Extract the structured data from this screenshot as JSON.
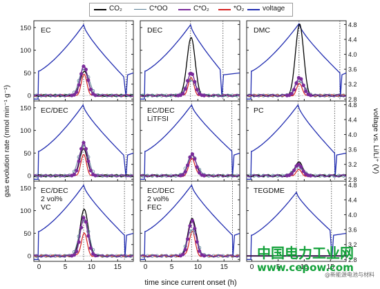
{
  "legend": [
    {
      "label": "CO₂",
      "color": "#000000",
      "marker": "none"
    },
    {
      "label": "C*OO",
      "color": "#5a7f95",
      "marker": "open-circle"
    },
    {
      "label": "C*O₂",
      "color": "#7a2a9a",
      "marker": "filled-circle"
    },
    {
      "label": "*O₂",
      "color": "#d62020",
      "marker": "none"
    },
    {
      "label": "voltage",
      "color": "#1f2bb0",
      "marker": "none"
    }
  ],
  "ylabel_left": "gas evolution rate (nmol min⁻¹ g⁻¹)",
  "ylabel_right": "voltage vs. Li/Li⁺ (V)",
  "xlabel": "time since current onset (h)",
  "watermark": {
    "line1": "中国电力工业网",
    "line2": "www.cepow.com",
    "line3": "@新能源电池与材料"
  },
  "chart_data": {
    "type": "line",
    "layout": "3x3 grid of panels sharing axes",
    "xlim": [
      -1,
      18
    ],
    "xticks": [
      0,
      5,
      10,
      15
    ],
    "ylim_left": [
      -12,
      165
    ],
    "yticks_left": [
      0,
      50,
      100,
      150
    ],
    "ylim_right": [
      2.75,
      4.9
    ],
    "yticks_right": [
      2.8,
      3.2,
      3.6,
      4.0,
      4.4,
      4.8
    ],
    "grid": false,
    "panels": [
      {
        "label": [
          "EC"
        ],
        "co2_peak": 55,
        "coo_peak": 60,
        "co2o_peak": 65,
        "o2_peak": 45,
        "v_peak": 4.79,
        "v_peak_t": 8.5,
        "v_start": 3.55,
        "v_end": 3.35,
        "t_end": 16.5,
        "vline_t": [
          8.5,
          16.6
        ]
      },
      {
        "label": [
          "DEC"
        ],
        "co2_peak": 130,
        "coo_peak": 35,
        "co2o_peak": 50,
        "o2_peak": 38,
        "v_peak": 4.79,
        "v_peak_t": 8.6,
        "v_start": 3.55,
        "v_end": 3.55,
        "t_end": 14.5,
        "vline_t": [
          8.6,
          14.8
        ]
      },
      {
        "label": [
          "DMC"
        ],
        "co2_peak": 160,
        "coo_peak": 33,
        "co2o_peak": 40,
        "o2_peak": 25,
        "v_peak": 4.82,
        "v_peak_t": 9.0,
        "v_start": 3.55,
        "v_end": 3.5,
        "t_end": 16.8,
        "vline_t": [
          9.0,
          16.8
        ]
      },
      {
        "label": [
          "EC/DEC"
        ],
        "co2_peak": 58,
        "coo_peak": 68,
        "co2o_peak": 73,
        "o2_peak": 45,
        "v_peak": 4.79,
        "v_peak_t": 8.4,
        "v_start": 3.55,
        "v_end": 3.4,
        "t_end": 16.5,
        "vline_t": [
          8.4,
          16.6
        ]
      },
      {
        "label": [
          "EC/DEC",
          "LiTFSI"
        ],
        "co2_peak": 47,
        "coo_peak": 45,
        "co2o_peak": 48,
        "o2_peak": 40,
        "v_peak": 4.79,
        "v_peak_t": 8.8,
        "v_start": 3.55,
        "v_end": 3.55,
        "t_end": 16.5,
        "vline_t": [
          8.8,
          16.5
        ]
      },
      {
        "label": [
          "PC"
        ],
        "co2_peak": 30,
        "coo_peak": 20,
        "co2o_peak": 25,
        "o2_peak": 12,
        "v_peak": 4.79,
        "v_peak_t": 8.8,
        "v_start": 3.55,
        "v_end": 3.5,
        "t_end": 15.8,
        "vline_t": [
          8.8,
          15.8
        ]
      },
      {
        "label": [
          "EC/DEC",
          "2 vol%",
          "VC"
        ],
        "co2_peak": 105,
        "coo_peak": 80,
        "co2o_peak": 85,
        "o2_peak": 50,
        "v_peak": 4.79,
        "v_peak_t": 8.5,
        "v_start": 3.55,
        "v_end": 3.45,
        "t_end": 16.3,
        "vline_t": [
          8.5,
          16.3
        ]
      },
      {
        "label": [
          "EC/DEC",
          "2 vol%",
          "FEC"
        ],
        "co2_peak": 85,
        "coo_peak": 60,
        "co2o_peak": 78,
        "o2_peak": 55,
        "v_peak": 4.79,
        "v_peak_t": 8.8,
        "v_start": 3.55,
        "v_end": 3.45,
        "t_end": 16.6,
        "vline_t": [
          8.8,
          16.6
        ]
      },
      {
        "label": [
          "TEGDME"
        ],
        "co2_peak": 0,
        "coo_peak": 0,
        "co2o_peak": 0,
        "o2_peak": 0,
        "v_peak": 4.6,
        "v_peak_t": 8.5,
        "v_start": 3.45,
        "v_end": 3.55,
        "t_end": 15.2,
        "vline_t": [
          8.5,
          15.2
        ]
      }
    ]
  }
}
